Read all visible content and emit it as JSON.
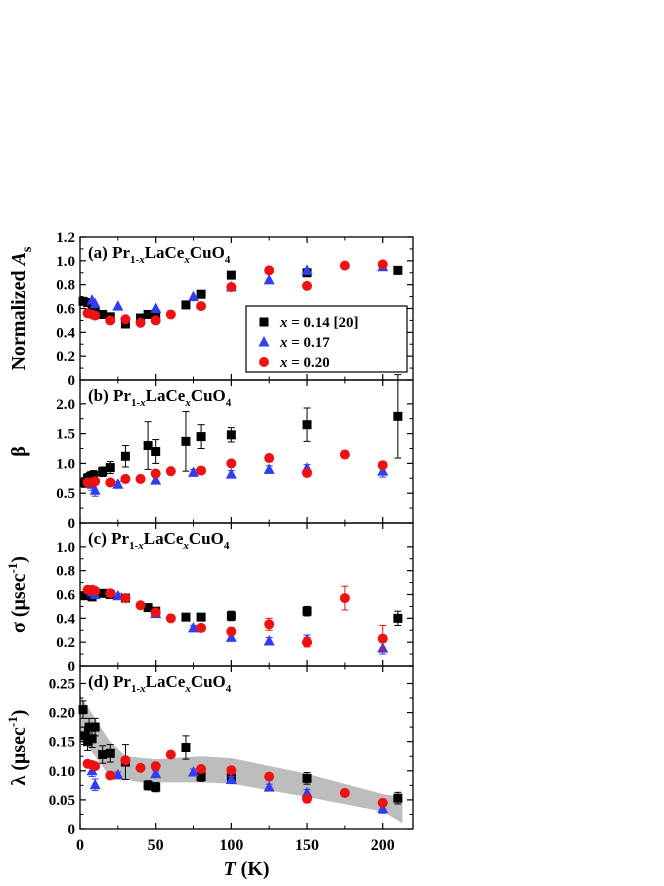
{
  "x_axis": {
    "label_italic": "T",
    "label_rest": " (K)",
    "ticks": [
      0,
      50,
      100,
      150,
      200
    ],
    "xlim": [
      0,
      220
    ]
  },
  "legend": {
    "prefix": "x",
    "entries": [
      {
        "series": "x014",
        "text": " = 0.14 [20]"
      },
      {
        "series": "x017",
        "text": " = 0.17"
      },
      {
        "series": "x020",
        "text": " = 0.20"
      }
    ]
  },
  "series_style": {
    "x014": {
      "marker": "square",
      "color": "#000000"
    },
    "x017": {
      "marker": "triangle",
      "color": "#2f3ff0"
    },
    "x020": {
      "marker": "circle",
      "color": "#ee1111"
    }
  },
  "chart_data": [
    {
      "type": "scatter",
      "panel_tag": "(a)",
      "ylabel": {
        "main": "Normalized A",
        "sub": "s"
      },
      "ylim": [
        0,
        1.2
      ],
      "yticks": [
        0,
        0.2,
        0.4,
        0.6,
        0.8,
        1.0,
        1.2
      ],
      "ytick_labels": [
        "0",
        "0.2",
        "0.4",
        "0.6",
        "0.8",
        "1.0",
        "1.2"
      ],
      "series": [
        {
          "name": "x = 0.14 [20]",
          "key": "x014",
          "points": [
            [
              2,
              0.66
            ],
            [
              5,
              0.65
            ],
            [
              8,
              0.6
            ],
            [
              10,
              0.58
            ],
            [
              15,
              0.55
            ],
            [
              20,
              0.53
            ],
            [
              30,
              0.47
            ],
            [
              40,
              0.52
            ],
            [
              45,
              0.55
            ],
            [
              50,
              0.55
            ],
            [
              70,
              0.63
            ],
            [
              80,
              0.72
            ],
            [
              100,
              0.88
            ],
            [
              150,
              0.9
            ],
            [
              210,
              0.92
            ]
          ]
        },
        {
          "name": "x = 0.17",
          "key": "x017",
          "points": [
            [
              8,
              0.67
            ],
            [
              10,
              0.64
            ],
            [
              25,
              0.62
            ],
            [
              50,
              0.6
            ],
            [
              75,
              0.7
            ],
            [
              100,
              0.78
            ],
            [
              125,
              0.84
            ],
            [
              150,
              0.92
            ],
            [
              200,
              0.95
            ]
          ]
        },
        {
          "name": "x = 0.20",
          "key": "x020",
          "points": [
            [
              5,
              0.56
            ],
            [
              8,
              0.55
            ],
            [
              10,
              0.54
            ],
            [
              20,
              0.5
            ],
            [
              30,
              0.51
            ],
            [
              40,
              0.48
            ],
            [
              50,
              0.5
            ],
            [
              60,
              0.55
            ],
            [
              80,
              0.62
            ],
            [
              100,
              0.78
            ],
            [
              125,
              0.92
            ],
            [
              150,
              0.79
            ],
            [
              175,
              0.96
            ],
            [
              200,
              0.97
            ]
          ]
        }
      ]
    },
    {
      "type": "scatter",
      "panel_tag": "(b)",
      "ylabel": {
        "main": "β",
        "sub": ""
      },
      "ylim": [
        0,
        2.4
      ],
      "yticks": [
        0,
        0.5,
        1.0,
        1.5,
        2.0
      ],
      "ytick_labels": [
        "0",
        "0.5",
        "1.0",
        "1.5",
        "2.0"
      ],
      "series": [
        {
          "name": "x = 0.14 [20]",
          "key": "x014",
          "points": [
            [
              3,
              0.68,
              0.08
            ],
            [
              5,
              0.75,
              0.08
            ],
            [
              7,
              0.78,
              0.08
            ],
            [
              9,
              0.8,
              0.08
            ],
            [
              15,
              0.86,
              0.08
            ],
            [
              20,
              0.93,
              0.1
            ],
            [
              30,
              1.12,
              0.18
            ],
            [
              45,
              1.3,
              0.4
            ],
            [
              50,
              1.2,
              0.2
            ],
            [
              70,
              1.37,
              0.5
            ],
            [
              80,
              1.45,
              0.2
            ],
            [
              100,
              1.48,
              0.12
            ],
            [
              150,
              1.65,
              0.28
            ],
            [
              210,
              1.79,
              0.7
            ]
          ]
        },
        {
          "name": "x = 0.17",
          "key": "x017",
          "points": [
            [
              8,
              0.65,
              0.1
            ],
            [
              10,
              0.55,
              0.1
            ],
            [
              25,
              0.65,
              0.05
            ],
            [
              50,
              0.72,
              0.05
            ],
            [
              75,
              0.85,
              0.05
            ],
            [
              100,
              0.82,
              0.06
            ],
            [
              125,
              0.9,
              0.06
            ],
            [
              150,
              0.92,
              0.06
            ],
            [
              200,
              0.87,
              0.1
            ]
          ]
        },
        {
          "name": "x = 0.20",
          "key": "x020",
          "points": [
            [
              5,
              0.68,
              0.05
            ],
            [
              8,
              0.68,
              0.05
            ],
            [
              10,
              0.7,
              0.05
            ],
            [
              20,
              0.68,
              0.05
            ],
            [
              30,
              0.74,
              0.05
            ],
            [
              40,
              0.74,
              0.05
            ],
            [
              50,
              0.83,
              0.05
            ],
            [
              60,
              0.87,
              0.05
            ],
            [
              80,
              0.88,
              0.05
            ],
            [
              100,
              1.0,
              0.05
            ],
            [
              125,
              1.09,
              0.05
            ],
            [
              150,
              0.84,
              0.06
            ],
            [
              175,
              1.15,
              0.06
            ],
            [
              200,
              0.97,
              0.05
            ]
          ]
        }
      ]
    },
    {
      "type": "scatter",
      "panel_tag": "(c)",
      "ylabel": {
        "main": "σ (μsec",
        "sup": "-1",
        "tail": ")"
      },
      "ylim": [
        0,
        1.2
      ],
      "yticks": [
        0,
        0.2,
        0.4,
        0.6,
        0.8,
        1.0
      ],
      "ytick_labels": [
        "0",
        "0.2",
        "0.4",
        "0.6",
        "0.8",
        "1.0"
      ],
      "series": [
        {
          "name": "x = 0.14 [20]",
          "key": "x014",
          "points": [
            [
              3,
              0.59,
              0.02
            ],
            [
              5,
              0.6,
              0.02
            ],
            [
              8,
              0.58,
              0.02
            ],
            [
              10,
              0.6,
              0.02
            ],
            [
              15,
              0.61,
              0.02
            ],
            [
              20,
              0.6,
              0.02
            ],
            [
              30,
              0.57,
              0.02
            ],
            [
              45,
              0.49,
              0.02
            ],
            [
              50,
              0.46,
              0.02
            ],
            [
              70,
              0.41,
              0.02
            ],
            [
              80,
              0.41,
              0.02
            ],
            [
              100,
              0.42,
              0.04
            ],
            [
              150,
              0.46,
              0.04
            ],
            [
              210,
              0.4,
              0.06
            ]
          ]
        },
        {
          "name": "x = 0.17",
          "key": "x017",
          "points": [
            [
              8,
              0.62,
              0.02
            ],
            [
              10,
              0.6,
              0.02
            ],
            [
              25,
              0.59,
              0.02
            ],
            [
              50,
              0.44,
              0.02
            ],
            [
              75,
              0.32,
              0.02
            ],
            [
              100,
              0.24,
              0.03
            ],
            [
              125,
              0.21,
              0.03
            ],
            [
              150,
              0.22,
              0.04
            ],
            [
              200,
              0.15,
              0.05
            ]
          ]
        },
        {
          "name": "x = 0.20",
          "key": "x020",
          "points": [
            [
              5,
              0.64,
              0.02
            ],
            [
              8,
              0.64,
              0.02
            ],
            [
              10,
              0.63,
              0.02
            ],
            [
              20,
              0.61,
              0.02
            ],
            [
              30,
              0.57,
              0.02
            ],
            [
              40,
              0.51,
              0.02
            ],
            [
              50,
              0.45,
              0.02
            ],
            [
              60,
              0.4,
              0.02
            ],
            [
              80,
              0.32,
              0.02
            ],
            [
              100,
              0.29,
              0.03
            ],
            [
              125,
              0.35,
              0.05
            ],
            [
              150,
              0.2,
              0.04
            ],
            [
              175,
              0.57,
              0.1
            ],
            [
              200,
              0.23,
              0.11
            ]
          ]
        }
      ]
    },
    {
      "type": "scatter",
      "panel_tag": "(d)",
      "ylabel": {
        "main": "λ (μsec",
        "sup": "-1",
        "tail": ")"
      },
      "ylim": [
        0,
        0.28
      ],
      "yticks": [
        0,
        0.05,
        0.1,
        0.15,
        0.2,
        0.25
      ],
      "ytick_labels": [
        "0",
        "0.05",
        "0.10",
        "0.15",
        "0.20",
        "0.25"
      ],
      "band": {
        "lower": [
          [
            0,
            0.16
          ],
          [
            20,
            0.09
          ],
          [
            40,
            0.08
          ],
          [
            60,
            0.08
          ],
          [
            80,
            0.08
          ],
          [
            100,
            0.078
          ],
          [
            150,
            0.055
          ],
          [
            200,
            0.03
          ],
          [
            213,
            0.01
          ]
        ],
        "upper": [
          [
            0,
            0.23
          ],
          [
            10,
            0.19
          ],
          [
            20,
            0.15
          ],
          [
            30,
            0.125
          ],
          [
            50,
            0.12
          ],
          [
            80,
            0.125
          ],
          [
            100,
            0.122
          ],
          [
            150,
            0.095
          ],
          [
            200,
            0.06
          ],
          [
            213,
            0.055
          ]
        ]
      },
      "series": [
        {
          "name": "x = 0.14 [20]",
          "key": "x014",
          "points": [
            [
              2,
              0.205,
              0.015
            ],
            [
              3,
              0.16,
              0.015
            ],
            [
              5,
              0.15,
              0.015
            ],
            [
              6,
              0.175,
              0.015
            ],
            [
              8,
              0.155,
              0.015
            ],
            [
              10,
              0.175,
              0.015
            ],
            [
              15,
              0.128,
              0.015
            ],
            [
              20,
              0.13,
              0.015
            ],
            [
              30,
              0.115,
              0.03
            ],
            [
              45,
              0.075,
              0.008
            ],
            [
              50,
              0.072,
              0.008
            ],
            [
              70,
              0.14,
              0.02
            ],
            [
              80,
              0.09,
              0.008
            ],
            [
              100,
              0.088,
              0.01
            ],
            [
              150,
              0.087,
              0.01
            ],
            [
              210,
              0.053,
              0.01
            ]
          ]
        },
        {
          "name": "x = 0.17",
          "key": "x017",
          "points": [
            [
              8,
              0.1,
              0.01
            ],
            [
              10,
              0.076,
              0.01
            ],
            [
              25,
              0.093,
              0.005
            ],
            [
              50,
              0.095,
              0.005
            ],
            [
              75,
              0.098,
              0.005
            ],
            [
              100,
              0.085,
              0.005
            ],
            [
              125,
              0.072,
              0.005
            ],
            [
              150,
              0.062,
              0.006
            ],
            [
              200,
              0.035,
              0.008
            ]
          ]
        },
        {
          "name": "x = 0.20",
          "key": "x020",
          "points": [
            [
              5,
              0.112,
              0.005
            ],
            [
              8,
              0.11,
              0.005
            ],
            [
              10,
              0.108,
              0.005
            ],
            [
              20,
              0.092,
              0.005
            ],
            [
              30,
              0.118,
              0.005
            ],
            [
              40,
              0.105,
              0.005
            ],
            [
              50,
              0.108,
              0.005
            ],
            [
              60,
              0.128,
              0.005
            ],
            [
              80,
              0.103,
              0.005
            ],
            [
              100,
              0.101,
              0.005
            ],
            [
              125,
              0.09,
              0.005
            ],
            [
              150,
              0.052,
              0.007
            ],
            [
              175,
              0.062,
              0.005
            ],
            [
              200,
              0.045,
              0.005
            ]
          ]
        }
      ]
    }
  ]
}
